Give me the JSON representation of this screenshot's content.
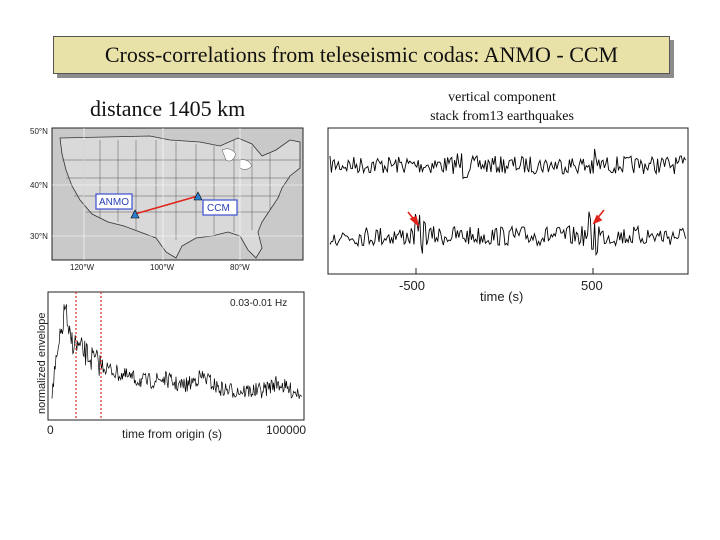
{
  "title": "Cross-correlations from teleseismic codas: ANMO - CCM",
  "distance_label": "distance 1405 km",
  "correlation_caption": {
    "line1": "vertical component",
    "line2": "stack from13 earthquakes"
  },
  "map": {
    "lat_labels": [
      "50°N",
      "40°N",
      "30°N"
    ],
    "lon_labels": [
      "120°W",
      "100°W",
      "80°W"
    ],
    "stations": [
      {
        "name": "ANMO",
        "label": "ANMO"
      },
      {
        "name": "CCM",
        "label": "CCM"
      }
    ],
    "path_color": "#e0241b",
    "station_box_color": "#3c4fd0"
  },
  "correlation_plot": {
    "xlabel": "time (s)",
    "tick_labels": [
      "-500",
      "500"
    ],
    "arrow_color": "#e0241b"
  },
  "envelope_plot": {
    "ylabel": "normalized envelope",
    "xlabel": "time from origin (s)",
    "freq_band": "0.03-0.01 Hz",
    "tick_labels": [
      "0",
      "100000"
    ],
    "marker_color": "#d42a1f"
  }
}
